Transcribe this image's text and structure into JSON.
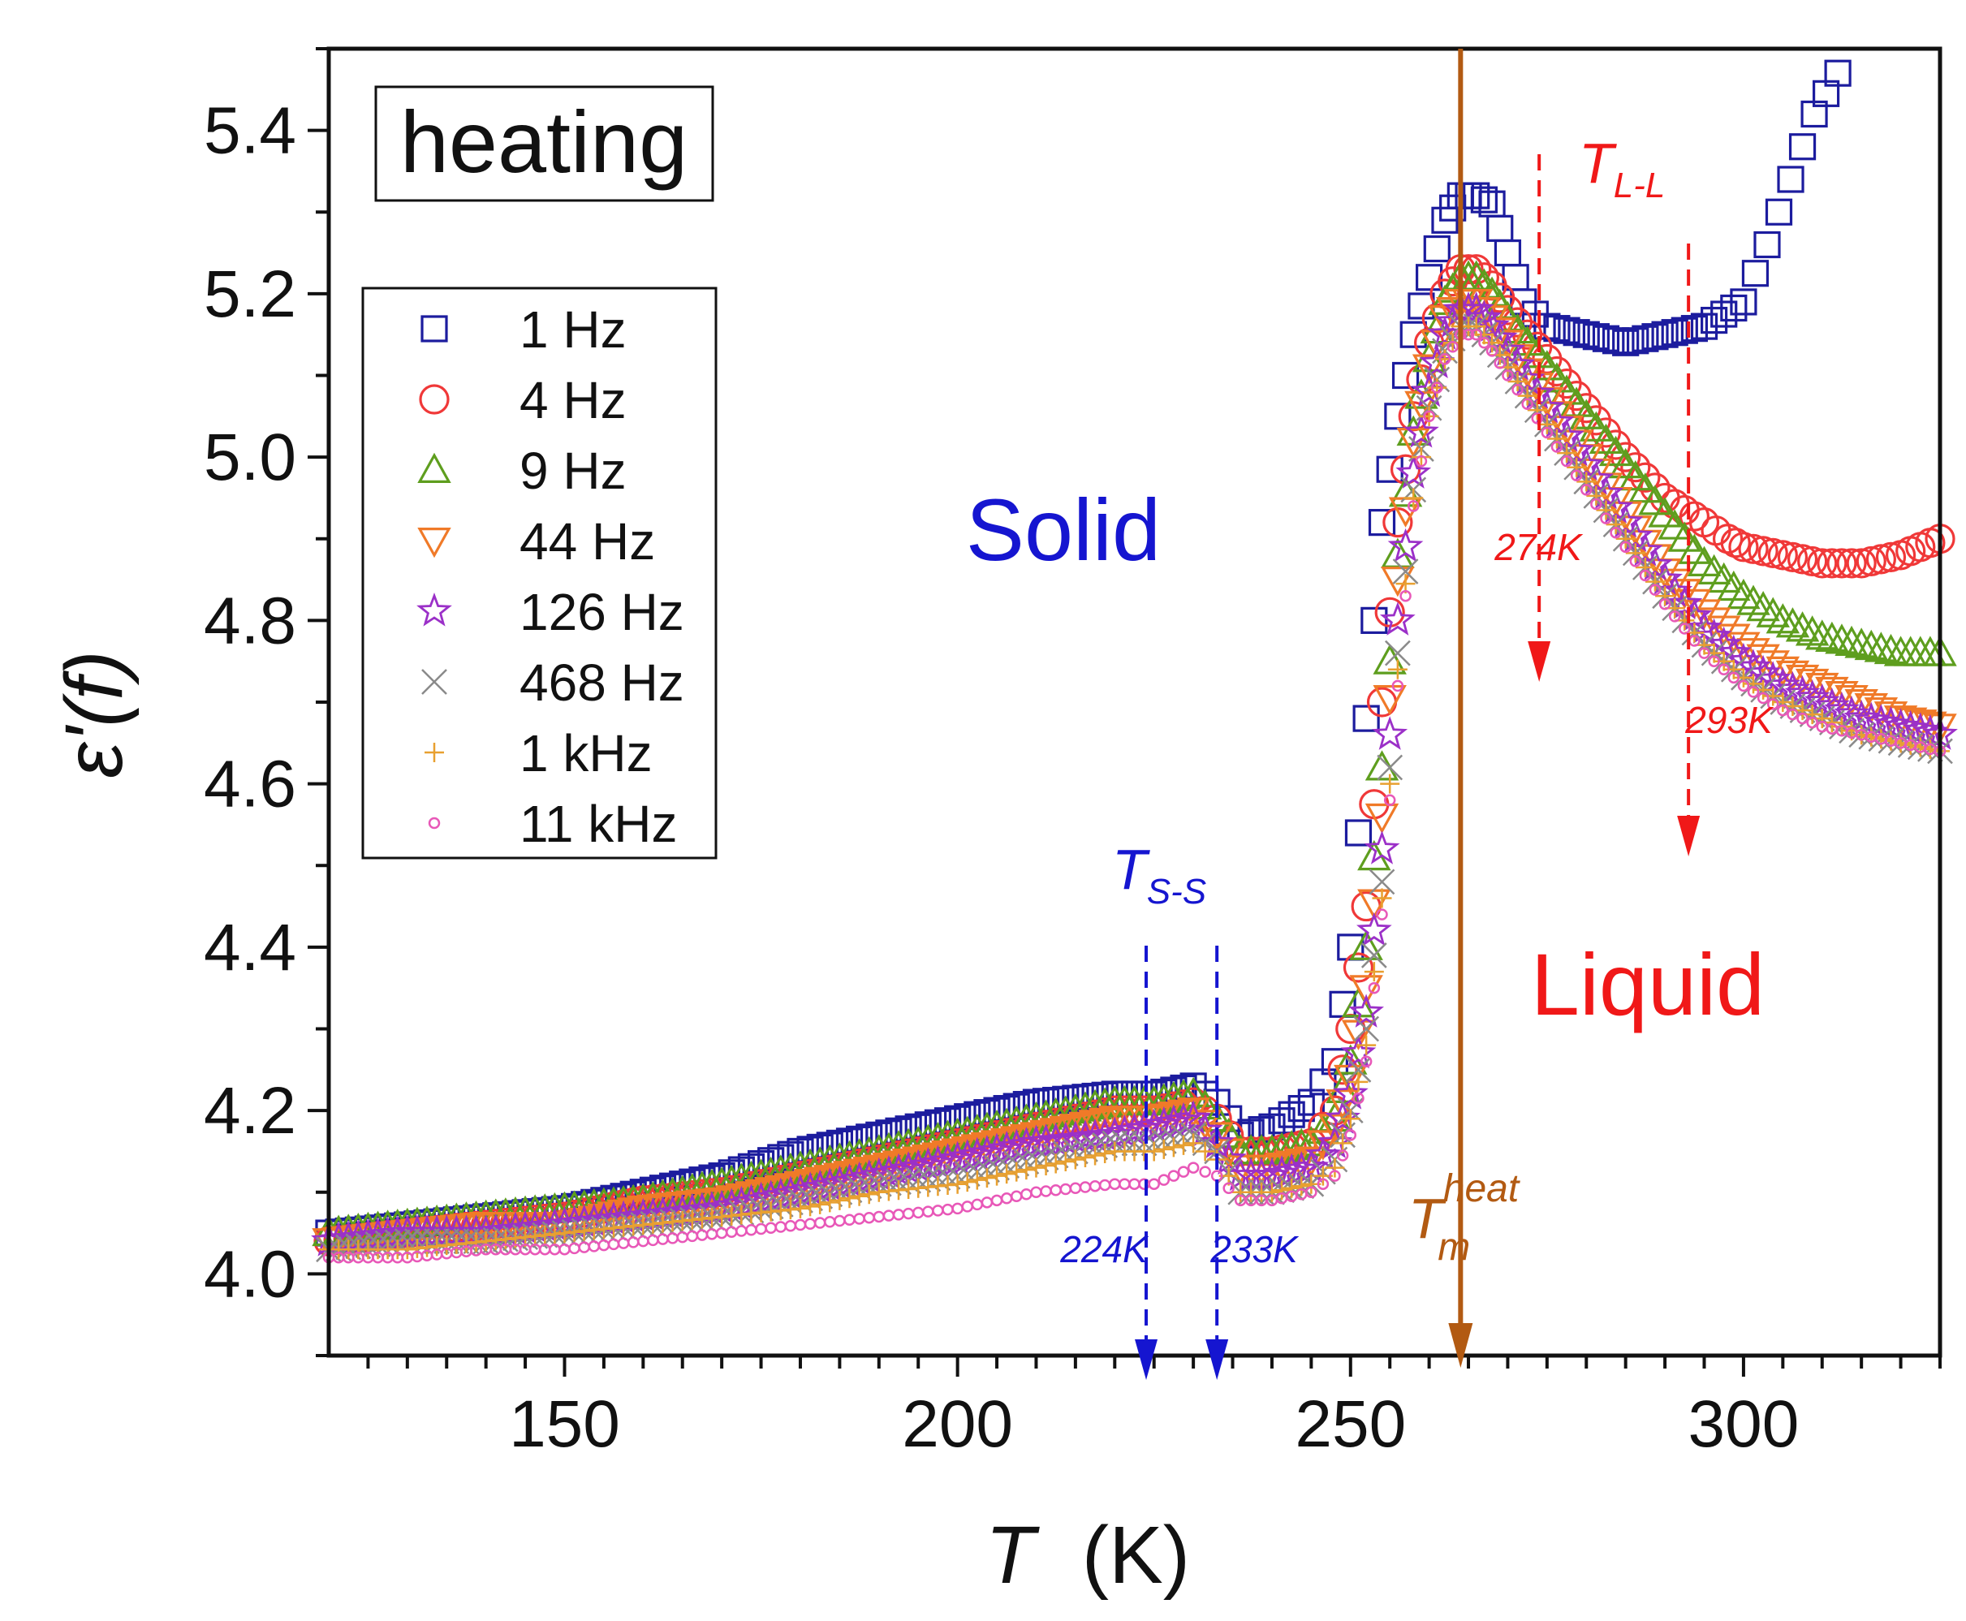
{
  "chart_data": {
    "type": "scatter",
    "title": "",
    "panel_label": "heating",
    "xlabel_symbol": "T",
    "xlabel_unit": "(K)",
    "ylabel_symbol": "ε'(f)",
    "xlim": [
      120,
      325
    ],
    "ylim": [
      3.9,
      5.5
    ],
    "x_ticks": [
      150,
      200,
      250,
      300
    ],
    "y_ticks": [
      4.0,
      4.2,
      4.4,
      4.6,
      4.8,
      5.0,
      5.2,
      5.4
    ],
    "x_ticks_display": [
      "150",
      "200",
      "250",
      "300"
    ],
    "y_ticks_display": [
      "4.0",
      "4.2",
      "4.4",
      "4.6",
      "4.8",
      "5.0",
      "5.2",
      "5.4"
    ],
    "legend_position": "upper-left",
    "series": [
      {
        "name": "1 Hz",
        "marker": "square",
        "color": "#1c1c9e",
        "x": [
          120,
          130,
          140,
          150,
          160,
          170,
          180,
          190,
          200,
          210,
          220,
          225,
          230,
          233,
          236,
          240,
          245,
          248,
          250,
          252,
          254,
          256,
          258,
          260,
          262,
          264,
          266,
          268,
          270,
          272,
          275,
          280,
          285,
          290,
          295,
          300,
          303,
          306,
          309,
          312
        ],
        "y": [
          4.05,
          4.06,
          4.07,
          4.08,
          4.1,
          4.12,
          4.15,
          4.17,
          4.19,
          4.21,
          4.22,
          4.22,
          4.23,
          4.21,
          4.17,
          4.18,
          4.21,
          4.26,
          4.4,
          4.68,
          4.92,
          5.05,
          5.15,
          5.22,
          5.29,
          5.32,
          5.32,
          5.31,
          5.25,
          5.19,
          5.16,
          5.15,
          5.14,
          5.15,
          5.16,
          5.19,
          5.26,
          5.34,
          5.42,
          5.47
        ]
      },
      {
        "name": "4 Hz",
        "marker": "circle",
        "color": "#f03838",
        "x": [
          120,
          130,
          140,
          150,
          160,
          170,
          180,
          190,
          200,
          210,
          220,
          225,
          230,
          233,
          236,
          240,
          245,
          248,
          250,
          252,
          254,
          256,
          258,
          260,
          262,
          264,
          266,
          268,
          270,
          275,
          280,
          285,
          290,
          295,
          298,
          300,
          305,
          310,
          315,
          320,
          325
        ],
        "y": [
          4.04,
          4.05,
          4.06,
          4.07,
          4.09,
          4.1,
          4.12,
          4.14,
          4.16,
          4.18,
          4.2,
          4.2,
          4.21,
          4.19,
          4.15,
          4.15,
          4.16,
          4.2,
          4.3,
          4.45,
          4.7,
          4.92,
          5.05,
          5.14,
          5.2,
          5.23,
          5.23,
          5.21,
          5.18,
          5.12,
          5.06,
          5.0,
          4.95,
          4.92,
          4.9,
          4.89,
          4.88,
          4.87,
          4.87,
          4.88,
          4.9
        ]
      },
      {
        "name": "9 Hz",
        "marker": "triangle-up",
        "color": "#5e9e1e",
        "x": [
          120,
          130,
          140,
          150,
          160,
          170,
          180,
          190,
          200,
          210,
          220,
          225,
          230,
          233,
          236,
          240,
          245,
          248,
          250,
          252,
          254,
          256,
          258,
          260,
          262,
          264,
          266,
          268,
          270,
          275,
          280,
          285,
          290,
          295,
          300,
          305,
          310,
          315,
          320,
          325
        ],
        "y": [
          4.05,
          4.06,
          4.07,
          4.08,
          4.09,
          4.11,
          4.13,
          4.15,
          4.17,
          4.19,
          4.21,
          4.21,
          4.22,
          4.19,
          4.15,
          4.15,
          4.16,
          4.19,
          4.26,
          4.4,
          4.62,
          4.88,
          5.03,
          5.12,
          5.19,
          5.22,
          5.22,
          5.2,
          5.17,
          5.11,
          5.05,
          4.99,
          4.93,
          4.87,
          4.83,
          4.8,
          4.78,
          4.77,
          4.76,
          4.76
        ]
      },
      {
        "name": "44 Hz",
        "marker": "triangle-down",
        "color": "#f07a28",
        "x": [
          120,
          130,
          140,
          150,
          160,
          170,
          180,
          190,
          200,
          210,
          220,
          225,
          230,
          233,
          236,
          240,
          245,
          248,
          250,
          252,
          254,
          256,
          258,
          260,
          262,
          264,
          266,
          268,
          270,
          275,
          280,
          285,
          290,
          295,
          300,
          305,
          310,
          315,
          320,
          325
        ],
        "y": [
          4.04,
          4.05,
          4.06,
          4.06,
          4.08,
          4.09,
          4.11,
          4.13,
          4.15,
          4.17,
          4.19,
          4.19,
          4.2,
          4.17,
          4.13,
          4.13,
          4.14,
          4.18,
          4.24,
          4.35,
          4.56,
          4.85,
          5.02,
          5.11,
          5.17,
          5.19,
          5.19,
          5.17,
          5.14,
          5.07,
          5.0,
          4.93,
          4.86,
          4.81,
          4.77,
          4.74,
          4.72,
          4.7,
          4.68,
          4.67
        ]
      },
      {
        "name": "126 Hz",
        "marker": "star",
        "color": "#9b30c8",
        "x": [
          120,
          130,
          140,
          150,
          160,
          170,
          180,
          190,
          200,
          210,
          220,
          225,
          230,
          233,
          236,
          240,
          245,
          248,
          250,
          252,
          254,
          256,
          258,
          260,
          262,
          264,
          266,
          268,
          270,
          275,
          280,
          285,
          290,
          295,
          300,
          305,
          310,
          315,
          320,
          325
        ],
        "y": [
          4.04,
          4.05,
          4.05,
          4.06,
          4.07,
          4.08,
          4.1,
          4.12,
          4.14,
          4.16,
          4.17,
          4.18,
          4.19,
          4.16,
          4.12,
          4.12,
          4.13,
          4.16,
          4.22,
          4.32,
          4.52,
          4.8,
          4.98,
          5.08,
          5.15,
          5.18,
          5.18,
          5.16,
          5.13,
          5.06,
          4.99,
          4.92,
          4.85,
          4.79,
          4.75,
          4.72,
          4.7,
          4.68,
          4.67,
          4.66
        ]
      },
      {
        "name": "468 Hz",
        "marker": "cross",
        "color": "#8a8a8a",
        "x": [
          120,
          130,
          140,
          150,
          160,
          170,
          180,
          190,
          200,
          210,
          220,
          225,
          230,
          233,
          236,
          240,
          245,
          248,
          250,
          252,
          254,
          256,
          258,
          260,
          262,
          264,
          266,
          268,
          270,
          275,
          280,
          285,
          290,
          295,
          300,
          305,
          310,
          315,
          320,
          325
        ],
        "y": [
          4.03,
          4.04,
          4.04,
          4.05,
          4.06,
          4.07,
          4.09,
          4.11,
          4.12,
          4.14,
          4.16,
          4.16,
          4.17,
          4.15,
          4.1,
          4.1,
          4.11,
          4.14,
          4.2,
          4.3,
          4.48,
          4.76,
          4.96,
          5.06,
          5.13,
          5.16,
          5.16,
          5.14,
          5.11,
          5.04,
          4.97,
          4.9,
          4.83,
          4.77,
          4.73,
          4.7,
          4.68,
          4.66,
          4.65,
          4.64
        ]
      },
      {
        "name": "1 kHz",
        "marker": "plus",
        "color": "#e8a030",
        "x": [
          120,
          130,
          140,
          150,
          160,
          170,
          180,
          190,
          200,
          210,
          220,
          225,
          230,
          233,
          236,
          240,
          245,
          248,
          250,
          252,
          254,
          256,
          258,
          260,
          262,
          264,
          266,
          268,
          270,
          275,
          280,
          285,
          290,
          295,
          300,
          305,
          310,
          315,
          320,
          325
        ],
        "y": [
          4.03,
          4.03,
          4.04,
          4.05,
          4.06,
          4.07,
          4.08,
          4.1,
          4.11,
          4.13,
          4.15,
          4.15,
          4.16,
          4.14,
          4.1,
          4.1,
          4.11,
          4.13,
          4.19,
          4.28,
          4.46,
          4.74,
          4.95,
          5.05,
          5.12,
          5.16,
          5.16,
          5.14,
          5.11,
          5.04,
          4.97,
          4.9,
          4.83,
          4.77,
          4.73,
          4.7,
          4.68,
          4.66,
          4.65,
          4.64
        ]
      },
      {
        "name": "11 kHz",
        "marker": "small-circle",
        "color": "#e858b8",
        "x": [
          120,
          130,
          140,
          150,
          160,
          170,
          180,
          190,
          200,
          210,
          220,
          225,
          230,
          233,
          236,
          240,
          245,
          248,
          250,
          252,
          254,
          256,
          258,
          260,
          262,
          264,
          266,
          268,
          270,
          275,
          280,
          285,
          290,
          295,
          300,
          305,
          310,
          315,
          320,
          325
        ],
        "y": [
          4.02,
          4.02,
          4.03,
          4.03,
          4.04,
          4.05,
          4.06,
          4.07,
          4.08,
          4.1,
          4.11,
          4.11,
          4.13,
          4.12,
          4.09,
          4.09,
          4.1,
          4.12,
          4.17,
          4.26,
          4.44,
          4.72,
          4.94,
          5.05,
          5.12,
          5.15,
          5.15,
          5.13,
          5.1,
          5.03,
          4.96,
          4.89,
          4.82,
          4.76,
          4.72,
          4.69,
          4.67,
          4.66,
          4.65,
          4.64
        ]
      }
    ],
    "annotations": {
      "solid_label": "Solid",
      "liquid_label": "Liquid",
      "tss_symbol": "T",
      "tss_sub": "S-S",
      "tll_symbol": "T",
      "tll_sub": "L-L",
      "tm_symbol": "T",
      "tm_sub": "m",
      "tm_sup": "heat",
      "tss_values": [
        224,
        233
      ],
      "tll_values": [
        274,
        293
      ],
      "tm_value": 264,
      "label_224": "224K",
      "label_233": "233K",
      "label_274": "274K",
      "label_293": "293K",
      "solid_color": "#1515d0",
      "liquid_color": "#f01818",
      "tm_color": "#b25a12"
    }
  }
}
